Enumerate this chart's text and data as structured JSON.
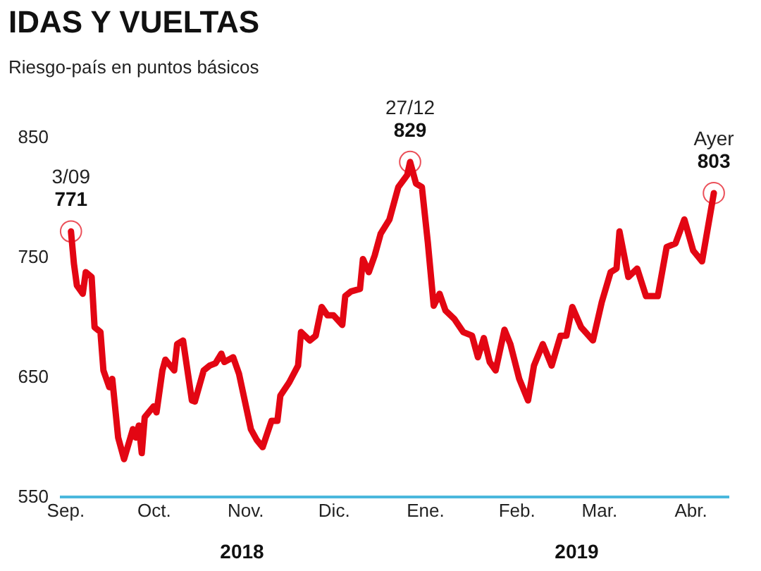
{
  "chart_data": {
    "type": "line",
    "title": "IDAS Y VUELTAS",
    "subtitle": "Riesgo-país en puntos básicos",
    "x": [
      "2018-09-03",
      "2018-09-04",
      "2018-09-05",
      "2018-09-07",
      "2018-09-08",
      "2018-09-10",
      "2018-09-11",
      "2018-09-13",
      "2018-09-14",
      "2018-09-16",
      "2018-09-17",
      "2018-09-19",
      "2018-09-21",
      "2018-09-24",
      "2018-09-25",
      "2018-09-26",
      "2018-09-27",
      "2018-09-28",
      "2018-10-01",
      "2018-10-02",
      "2018-10-04",
      "2018-10-05",
      "2018-10-08",
      "2018-10-09",
      "2018-10-11",
      "2018-10-14",
      "2018-10-15",
      "2018-10-18",
      "2018-10-20",
      "2018-10-22",
      "2018-10-24",
      "2018-10-25",
      "2018-10-28",
      "2018-10-30",
      "2018-11-03",
      "2018-11-05",
      "2018-11-07",
      "2018-11-10",
      "2018-11-12",
      "2018-11-13",
      "2018-11-16",
      "2018-11-19",
      "2018-11-20",
      "2018-11-23",
      "2018-11-25",
      "2018-11-27",
      "2018-11-29",
      "2018-12-01",
      "2018-12-04",
      "2018-12-05",
      "2018-12-07",
      "2018-12-10",
      "2018-12-11",
      "2018-12-13",
      "2018-12-15",
      "2018-12-17",
      "2018-12-20",
      "2018-12-23",
      "2018-12-26",
      "2018-12-27",
      "2018-12-29",
      "2018-12-31",
      "2019-01-02",
      "2019-01-04",
      "2019-01-06",
      "2019-01-08",
      "2019-01-11",
      "2019-01-14",
      "2019-01-17",
      "2019-01-19",
      "2019-01-21",
      "2019-01-23",
      "2019-01-25",
      "2019-01-28",
      "2019-01-30",
      "2019-02-02",
      "2019-02-05",
      "2019-02-07",
      "2019-02-10",
      "2019-02-13",
      "2019-02-16",
      "2019-02-18",
      "2019-02-20",
      "2019-02-23",
      "2019-02-27",
      "2019-03-02",
      "2019-03-05",
      "2019-03-07",
      "2019-03-08",
      "2019-03-11",
      "2019-03-14",
      "2019-03-17",
      "2019-03-21",
      "2019-03-24",
      "2019-03-27",
      "2019-03-30",
      "2019-04-02",
      "2019-04-05",
      "2019-04-09"
    ],
    "series": [
      {
        "color": "#e30613",
        "values": [
          771,
          744,
          726,
          719,
          737,
          733,
          691,
          687,
          655,
          641,
          648,
          599,
          581,
          606,
          599,
          609,
          586,
          616,
          625,
          620,
          655,
          664,
          655,
          677,
          680,
          630,
          629,
          655,
          659,
          661,
          669,
          662,
          666,
          652,
          606,
          597,
          591,
          613,
          613,
          634,
          645,
          659,
          687,
          680,
          684,
          708,
          701,
          701,
          693,
          717,
          721,
          723,
          748,
          737,
          751,
          769,
          781,
          808,
          818,
          829,
          811,
          808,
          762,
          709,
          719,
          705,
          698,
          687,
          684,
          666,
          682,
          662,
          655,
          689,
          677,
          648,
          630,
          659,
          677,
          659,
          684,
          684,
          708,
          691,
          680,
          712,
          737,
          740,
          771,
          733,
          740,
          717,
          717,
          758,
          761,
          781,
          755,
          746,
          803
        ]
      }
    ],
    "xlim": [
      "2018-08-30",
      "2019-04-14"
    ],
    "xticks": [
      {
        "value": "2018-09-01",
        "label": "Sep."
      },
      {
        "value": "2018-10-01",
        "label": "Oct."
      },
      {
        "value": "2018-11-01",
        "label": "Nov."
      },
      {
        "value": "2018-12-01",
        "label": "Dic."
      },
      {
        "value": "2019-01-01",
        "label": "Ene."
      },
      {
        "value": "2019-02-01",
        "label": "Feb."
      },
      {
        "value": "2019-03-01",
        "label": "Mar."
      },
      {
        "value": "2019-04-01",
        "label": "Abr."
      }
    ],
    "ylim": [
      550,
      850
    ],
    "yticks": [
      550,
      650,
      750,
      850
    ],
    "grid": false,
    "legend": false,
    "annotations": [
      {
        "text": "3/09",
        "x": "2018-09-03",
        "y": 771
      },
      {
        "text": "771",
        "x": "2018-09-03",
        "y": 771
      },
      {
        "text": "27/12",
        "x": "2018-12-27",
        "y": 829
      },
      {
        "text": "829",
        "x": "2018-12-27",
        "y": 829
      },
      {
        "text": "Ayer",
        "x": "2019-04-09",
        "y": 803
      },
      {
        "text": "803",
        "x": "2019-04-09",
        "y": 803
      },
      "2018",
      "2019"
    ]
  }
}
